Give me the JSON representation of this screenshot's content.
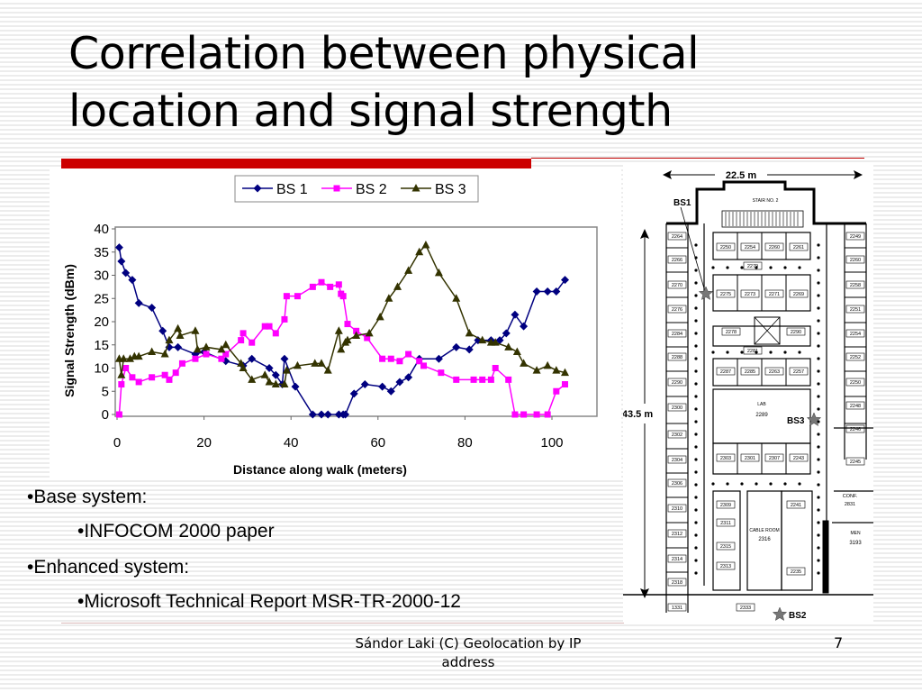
{
  "slide": {
    "title_line1": "Correlation between physical",
    "title_line2": "location and signal strength",
    "bullets": [
      {
        "level": 1,
        "text": "•Base system:"
      },
      {
        "level": 2,
        "text": "•INFOCOM 2000 paper"
      },
      {
        "level": 1,
        "text": "•Enhanced system:"
      },
      {
        "level": 2,
        "text": "•Microsoft Technical Report MSR-TR-2000-12"
      }
    ],
    "footer_line1": "Sándor Laki (C) Geolocation by IP",
    "footer_line2": "address",
    "page_number": "7",
    "accent_color": "#cc0000"
  },
  "floor_plan": {
    "width_label": "22.5 m",
    "height_label": "43.5 m",
    "stair_label": "STAIR NO. 2",
    "lab_label": "LAB",
    "lab_room": "2289",
    "cable_room_label": "CABLE ROOM",
    "cable_room_number": "2316",
    "conf_label": "CONF.",
    "conf_room": "2831",
    "men_label": "MEN",
    "men_room": "3193",
    "stations": [
      {
        "name": "BS1",
        "label": "BS1"
      },
      {
        "name": "BS2",
        "label": "BS2"
      },
      {
        "name": "BS3",
        "label": "BS3"
      }
    ],
    "rooms_left": [
      "2264",
      "2266",
      "2270",
      "2276",
      "2284",
      "2288",
      "2290",
      "2300",
      "2302",
      "2304",
      "2306",
      "2310",
      "2312",
      "2314",
      "2318"
    ],
    "rooms_right": [
      "2249",
      "2260",
      "2258",
      "2251",
      "2254",
      "2252",
      "2250",
      "2248",
      "2246",
      "2245"
    ],
    "rooms_top_row": [
      "2250",
      "2254",
      "2260",
      "2261"
    ],
    "rooms_mid_row": [
      "2275",
      "2273",
      "2271",
      "2269"
    ],
    "rooms_core": [
      "2278",
      "2290"
    ],
    "rooms_lower_row": [
      "2287",
      "2285",
      "2263",
      "2257"
    ],
    "rooms_lab_row": [
      "2303",
      "2301",
      "2307",
      "2243"
    ],
    "rooms_bottom": [
      "2309",
      "2311",
      "2315",
      "2313",
      "2241",
      "2235",
      "1331",
      "2333"
    ],
    "corridor_labels": [
      "2279",
      "2281"
    ]
  },
  "chart_data": {
    "type": "line",
    "title": "",
    "xlabel": "Distance along walk (meters)",
    "ylabel": "Signal Strength (dBm)",
    "xlim": [
      0,
      110
    ],
    "ylim": [
      0,
      40
    ],
    "xticks": [
      0,
      20,
      40,
      60,
      80,
      100
    ],
    "yticks": [
      0,
      5,
      10,
      15,
      20,
      25,
      30,
      35,
      40
    ],
    "grid": false,
    "legend_position": "top",
    "series": [
      {
        "name": "BS 1",
        "color": "#000080",
        "marker": "diamond",
        "points": [
          [
            0.5,
            36
          ],
          [
            1,
            33
          ],
          [
            2,
            30.5
          ],
          [
            3.5,
            29
          ],
          [
            5,
            24
          ],
          [
            8,
            23
          ],
          [
            10.5,
            18
          ],
          [
            12,
            14.5
          ],
          [
            14,
            14.5
          ],
          [
            18,
            13
          ],
          [
            20,
            13.5
          ],
          [
            25,
            11.5
          ],
          [
            29,
            10.5
          ],
          [
            31,
            12
          ],
          [
            35,
            10
          ],
          [
            36.5,
            8.5
          ],
          [
            38,
            6.5
          ],
          [
            38.5,
            12
          ],
          [
            41,
            6
          ],
          [
            45,
            0
          ],
          [
            47,
            0
          ],
          [
            48.5,
            0
          ],
          [
            51,
            0
          ],
          [
            52,
            0
          ],
          [
            52.5,
            0
          ],
          [
            54.5,
            4.5
          ],
          [
            57,
            6.5
          ],
          [
            61,
            6
          ],
          [
            63,
            5
          ],
          [
            65,
            7
          ],
          [
            67,
            8
          ],
          [
            69.5,
            12
          ],
          [
            74,
            12
          ],
          [
            78,
            14.5
          ],
          [
            81,
            14
          ],
          [
            83,
            16
          ],
          [
            86,
            16
          ],
          [
            88,
            16
          ],
          [
            89.5,
            17.5
          ],
          [
            91.5,
            21.5
          ],
          [
            93.5,
            19
          ],
          [
            96.5,
            26.5
          ],
          [
            99,
            26.5
          ],
          [
            101,
            26.5
          ],
          [
            103,
            29
          ]
        ]
      },
      {
        "name": "BS 2",
        "color": "#ff00ff",
        "marker": "square",
        "points": [
          [
            0.5,
            0
          ],
          [
            1,
            6.5
          ],
          [
            2,
            10
          ],
          [
            3.5,
            8
          ],
          [
            5,
            7
          ],
          [
            8,
            8
          ],
          [
            11,
            8.5
          ],
          [
            12,
            7.5
          ],
          [
            13.5,
            9
          ],
          [
            15,
            11
          ],
          [
            18,
            12
          ],
          [
            20.5,
            13
          ],
          [
            24,
            12
          ],
          [
            25,
            13
          ],
          [
            28.5,
            16
          ],
          [
            29,
            17.5
          ],
          [
            31,
            15.5
          ],
          [
            34,
            19
          ],
          [
            35,
            19
          ],
          [
            36.5,
            17.5
          ],
          [
            38.5,
            20.5
          ],
          [
            39,
            25.5
          ],
          [
            41.5,
            25.5
          ],
          [
            45,
            27.5
          ],
          [
            47,
            28.5
          ],
          [
            49,
            27.5
          ],
          [
            51,
            28
          ],
          [
            51.5,
            26
          ],
          [
            52,
            25.5
          ],
          [
            53,
            19.5
          ],
          [
            55,
            18
          ],
          [
            57.5,
            16.5
          ],
          [
            61,
            12
          ],
          [
            63,
            12
          ],
          [
            65,
            11.5
          ],
          [
            67,
            13
          ],
          [
            69.5,
            11.5
          ],
          [
            70.5,
            10.5
          ],
          [
            74.5,
            9
          ],
          [
            78,
            7.5
          ],
          [
            82,
            7.5
          ],
          [
            84,
            7.5
          ],
          [
            86,
            7.5
          ],
          [
            87,
            10
          ],
          [
            90,
            7.5
          ],
          [
            91.5,
            0
          ],
          [
            93.5,
            0
          ],
          [
            96.5,
            0
          ],
          [
            99,
            0
          ],
          [
            101,
            5
          ],
          [
            103,
            6.5
          ]
        ]
      },
      {
        "name": "BS 3",
        "color": "#333300",
        "marker": "triangle",
        "points": [
          [
            0.5,
            12
          ],
          [
            1,
            8.5
          ],
          [
            1.5,
            12
          ],
          [
            3,
            12
          ],
          [
            4,
            12.5
          ],
          [
            5,
            12.5
          ],
          [
            8,
            13.5
          ],
          [
            11,
            13
          ],
          [
            12,
            16
          ],
          [
            14,
            18.5
          ],
          [
            14.5,
            17
          ],
          [
            18,
            18
          ],
          [
            18.5,
            14
          ],
          [
            20.5,
            14.5
          ],
          [
            24,
            14
          ],
          [
            25,
            15
          ],
          [
            28.5,
            11
          ],
          [
            29,
            10
          ],
          [
            31,
            7.5
          ],
          [
            34,
            8.5
          ],
          [
            35,
            7
          ],
          [
            36.5,
            6.5
          ],
          [
            38.5,
            6.5
          ],
          [
            39,
            9.5
          ],
          [
            41.5,
            10.5
          ],
          [
            45.5,
            11
          ],
          [
            47,
            11
          ],
          [
            48.5,
            9.5
          ],
          [
            51,
            18
          ],
          [
            51.5,
            14
          ],
          [
            52.5,
            15.5
          ],
          [
            53,
            16
          ],
          [
            55,
            17
          ],
          [
            58,
            17.5
          ],
          [
            60.5,
            21
          ],
          [
            62.5,
            25
          ],
          [
            64.5,
            27.5
          ],
          [
            67,
            31
          ],
          [
            69.5,
            35
          ],
          [
            71,
            36.5
          ],
          [
            74,
            30.5
          ],
          [
            78,
            25
          ],
          [
            81,
            17.5
          ],
          [
            84,
            16
          ],
          [
            86,
            15.5
          ],
          [
            87,
            15.5
          ],
          [
            90,
            14.5
          ],
          [
            92,
            13.5
          ],
          [
            93.5,
            11
          ],
          [
            96.5,
            9.5
          ],
          [
            99,
            10.5
          ],
          [
            101,
            9.5
          ],
          [
            103,
            9
          ]
        ]
      }
    ]
  }
}
